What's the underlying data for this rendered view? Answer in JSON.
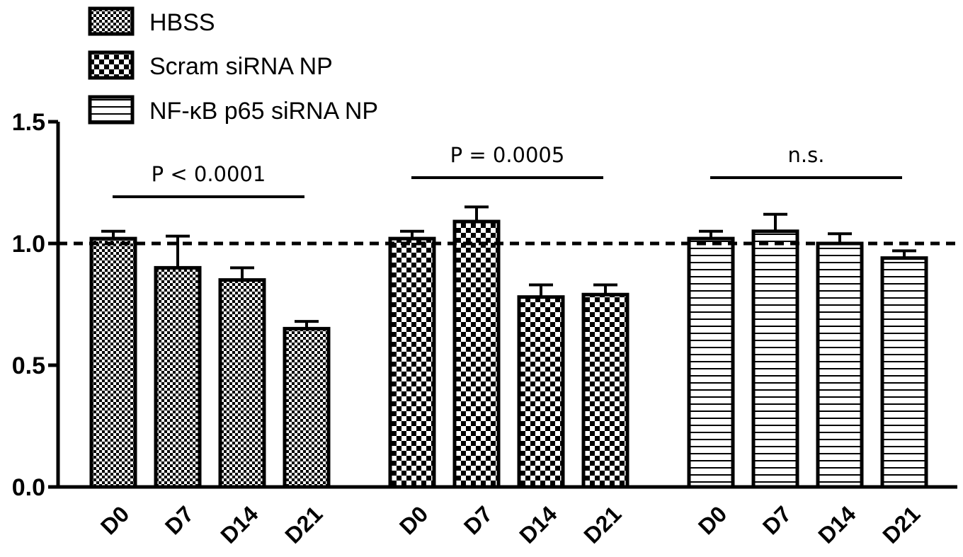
{
  "chart_data": {
    "type": "bar",
    "title": "",
    "xlabel": "",
    "ylabel": "",
    "ylim": [
      0,
      1.5
    ],
    "yticks": [
      "0.0",
      "0.5",
      "1.0",
      "1.5"
    ],
    "reference_line": 1.0,
    "legend": {
      "placement": "top-left",
      "entries": [
        "HBSS",
        "Scram siRNA NP",
        "NF-κB p65 siRNA NP"
      ]
    },
    "categories": [
      "D0",
      "D7",
      "D14",
      "D21"
    ],
    "series": [
      {
        "name": "HBSS",
        "pattern": "fine-checker",
        "values": [
          1.02,
          0.9,
          0.85,
          0.65
        ],
        "errors": [
          0.03,
          0.13,
          0.05,
          0.03
        ],
        "comparison": "P < 0.0001"
      },
      {
        "name": "Scram siRNA NP",
        "pattern": "coarse-checker",
        "values": [
          1.02,
          1.09,
          0.78,
          0.79
        ],
        "errors": [
          0.03,
          0.06,
          0.05,
          0.04
        ],
        "comparison": "P = 0.0005"
      },
      {
        "name": "NF-κB p65 siRNA NP",
        "pattern": "horizontal-stripes",
        "values": [
          1.02,
          1.05,
          1.0,
          0.94
        ],
        "errors": [
          0.03,
          0.07,
          0.04,
          0.03
        ],
        "comparison": "n.s."
      }
    ],
    "colors": {
      "ink": "#000000",
      "background": "#ffffff"
    }
  }
}
